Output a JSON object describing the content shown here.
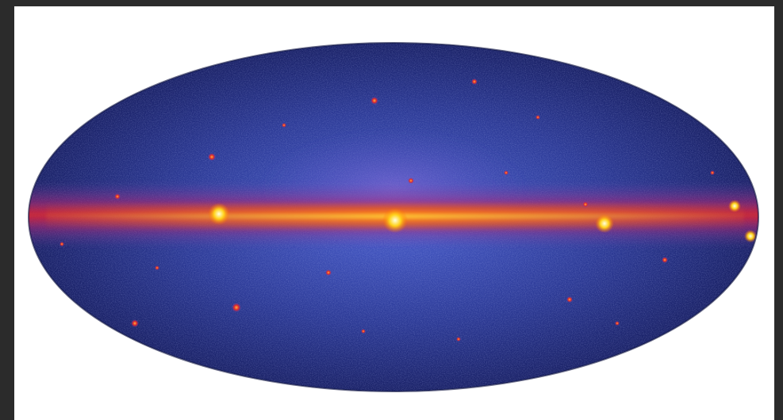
{
  "image": {
    "subject": "all-sky-map",
    "projection": "aitoff-ellipse",
    "colormap": [
      "#0b0f3a",
      "#1c2a7a",
      "#3b4fb8",
      "#7a3fa8",
      "#d81b2a",
      "#ff6a00",
      "#ffd21a",
      "#fff7b0"
    ],
    "colors": {
      "background": "#2b2b2b",
      "frame": "#ffffff",
      "deep_space": "#141a55",
      "diffuse": "#3a4cb0",
      "plane_outer": "#e0262a",
      "plane_core": "#ffd21a",
      "hotspot": "#fff7b0"
    }
  }
}
